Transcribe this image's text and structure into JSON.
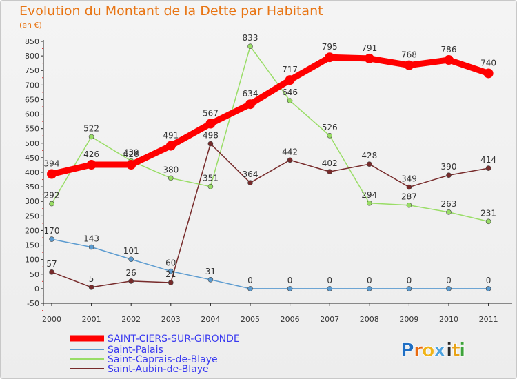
{
  "title": "Evolution du Montant de la Dette par Habitant",
  "unit": "(en €)",
  "brand": {
    "name": "Proxiti",
    "letters": [
      "P",
      "r",
      "o",
      "x",
      "i",
      "t",
      "i"
    ],
    "colors": [
      "#1f6fc4",
      "#e86a10",
      "#f0b419",
      "#4ca2e0",
      "#2a2a2a",
      "#e8a317",
      "#3ea33a"
    ]
  },
  "chart_data": {
    "type": "line",
    "title": "Evolution du Montant de la Dette par Habitant",
    "ylabel": "(en €)",
    "xlabel": "",
    "x": [
      "2000",
      "2001",
      "2002",
      "2003",
      "2004",
      "2005",
      "2006",
      "2007",
      "2008",
      "2009",
      "2010",
      "2011"
    ],
    "ylim": [
      -50,
      850
    ],
    "yticks": [
      "850",
      "800",
      "750",
      "700",
      "650",
      "600",
      "550",
      "500",
      "450",
      "400",
      "350",
      "300",
      "250",
      "200",
      "150",
      "100",
      "50",
      "0",
      "-50"
    ],
    "grid": false,
    "legend": "bottom-left",
    "series": [
      {
        "name": "SAINT-CIERS-SUR-GIRONDE",
        "color": "#ff0000",
        "values": [
          394,
          426,
          426,
          491,
          567,
          634,
          717,
          795,
          791,
          768,
          786,
          740
        ],
        "labels": [
          "394",
          "426",
          "426",
          "491",
          "567",
          "634",
          "717",
          "795",
          "791",
          "768",
          "786",
          "740"
        ]
      },
      {
        "name": "Saint-Palais",
        "color": "#5b9bd0",
        "values": [
          170,
          143,
          101,
          60,
          31,
          0,
          0,
          0,
          0,
          0,
          0,
          0
        ],
        "labels": [
          "170",
          "143",
          "101",
          "60",
          "31",
          "0",
          "0",
          "0",
          "0",
          "0",
          "0",
          "0"
        ]
      },
      {
        "name": "Saint-Caprais-de-Blaye",
        "color": "#99dd66",
        "values": [
          292,
          522,
          439,
          380,
          351,
          833,
          646,
          526,
          294,
          287,
          263,
          231
        ],
        "labels": [
          "292",
          "522",
          "439",
          "380",
          "351",
          "833",
          "646",
          "526",
          "294",
          "287",
          "263",
          "231"
        ]
      },
      {
        "name": "Saint-Aubin-de-Blaye",
        "color": "#772b2b",
        "values": [
          57,
          5,
          26,
          21,
          498,
          364,
          442,
          402,
          428,
          349,
          390,
          414
        ],
        "labels": [
          "57",
          "5",
          "26",
          "21",
          "498",
          "364",
          "442",
          "402",
          "428",
          "349",
          "390",
          "414"
        ]
      }
    ]
  }
}
